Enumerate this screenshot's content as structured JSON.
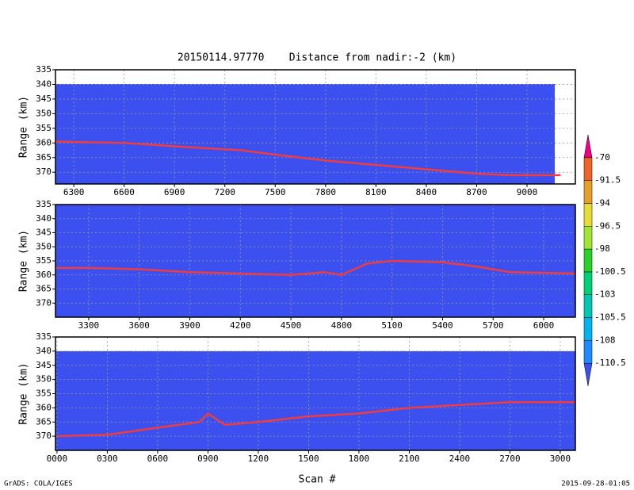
{
  "title": "20150114.97770    Distance from nadir:-2 (km)",
  "x_label": "Scan #",
  "footer_left": "GrADS: COLA/IGES",
  "footer_right": "2015-09-28-01:05",
  "colorbar": {
    "levels": [
      -110.5,
      -108,
      -105.5,
      -103,
      -100.5,
      -98,
      -96.5,
      -94,
      -91.5,
      -70
    ],
    "colors": [
      "#3c50f0",
      "#1e8cff",
      "#00b4f0",
      "#00c8b4",
      "#00d278",
      "#28d228",
      "#a0e632",
      "#e6dc32",
      "#e6a028",
      "#f06428",
      "#f00082"
    ]
  },
  "chart_data": [
    {
      "type": "line",
      "y_label": "Range (km)",
      "background": "#3c50f0",
      "grid": true,
      "x": [
        6191,
        6600,
        7000,
        7300,
        7500,
        7800,
        8100,
        8400,
        8700,
        8900,
        9200
      ],
      "series": [
        {
          "color": "#f03c3c",
          "values": [
            359.5,
            360,
            361.5,
            362.5,
            364,
            366,
            367.5,
            369,
            370.5,
            371,
            371
          ]
        }
      ],
      "xlim": [
        6191,
        9288
      ],
      "ylim": [
        374,
        335
      ],
      "xticks": [
        6300,
        6600,
        6900,
        7200,
        7500,
        7800,
        8100,
        8400,
        8700,
        9000
      ],
      "yticks": [
        335,
        340,
        345,
        350,
        355,
        360,
        365,
        370
      ]
    },
    {
      "type": "line",
      "y_label": "Range (km)",
      "background": "#3c50f0",
      "grid": true,
      "x": [
        3103,
        3300,
        3600,
        3900,
        4200,
        4500,
        4700,
        4800,
        4950,
        5100,
        5400,
        5600,
        5800,
        6188
      ],
      "series": [
        {
          "color": "#f03c3c",
          "values": [
            357.5,
            357.5,
            358,
            359,
            359.5,
            360,
            359,
            360,
            356,
            355,
            355.5,
            357,
            359,
            359.5
          ]
        }
      ],
      "xlim": [
        3103,
        6188
      ],
      "ylim": [
        375,
        335
      ],
      "xticks": [
        3300,
        3600,
        3900,
        4200,
        4500,
        4800,
        5100,
        5400,
        5700,
        6000
      ],
      "yticks": [
        335,
        340,
        345,
        350,
        355,
        360,
        365,
        370
      ]
    },
    {
      "type": "line",
      "y_label": "Range (km)",
      "background": "#3c50f0",
      "grid": true,
      "x": [
        0,
        300,
        600,
        850,
        900,
        1000,
        1200,
        1500,
        1800,
        2100,
        2400,
        2700,
        3090
      ],
      "series": [
        {
          "color": "#f03c3c",
          "values": [
            370,
            369.5,
            367,
            365,
            362,
            366,
            365,
            363,
            362,
            360,
            359,
            358,
            358
          ]
        }
      ],
      "xlim": [
        -9,
        3090
      ],
      "ylim": [
        375,
        335
      ],
      "xticks": [
        {
          "value": 0,
          "label": "0000"
        },
        {
          "value": 300,
          "label": "0300"
        },
        {
          "value": 600,
          "label": "0600"
        },
        {
          "value": 900,
          "label": "0900"
        },
        1200,
        1500,
        1800,
        2100,
        2400,
        2700,
        3000
      ],
      "yticks": [
        335,
        340,
        345,
        350,
        355,
        360,
        365,
        370
      ]
    }
  ]
}
